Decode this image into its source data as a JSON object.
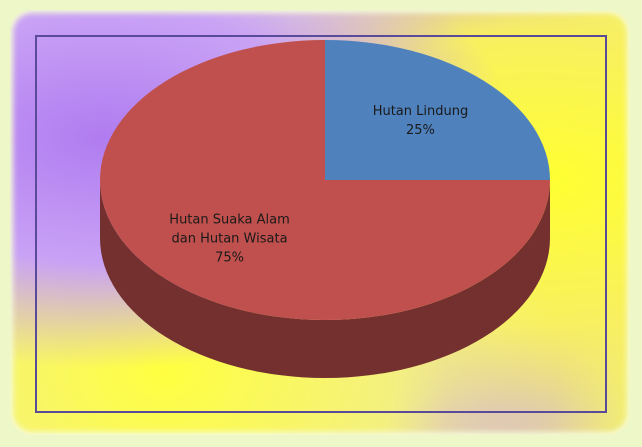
{
  "chart_data": {
    "type": "pie",
    "categories": [
      "Hutan Lindung",
      "Hutan Suaka Alam dan Hutan Wisata"
    ],
    "values": [
      25,
      75
    ],
    "value_labels": [
      "25%",
      "75%"
    ],
    "colors": [
      "#4f81bd",
      "#c0504d"
    ]
  }
}
